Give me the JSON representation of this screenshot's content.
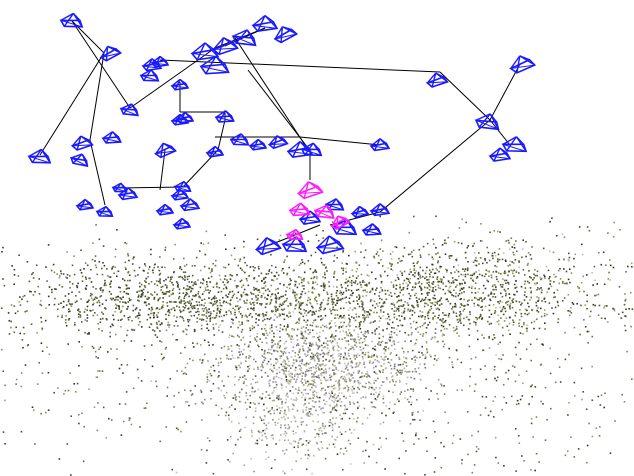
{
  "scene": {
    "background": "#ffffff",
    "camera_color": "#1a1aff",
    "highlight_camera_color": "#ff1aff",
    "trajectory_color": "#000000",
    "cluster_seed": 20240531,
    "points": {
      "palette": [
        "#3d4a2a",
        "#55602f",
        "#6b7540",
        "#8a8f58",
        "#9fa070",
        "#4a5236",
        "#a8a498",
        "#c8c4c0",
        "#7d7e6a",
        "#2f3524",
        "#b5b39a",
        "#8c8a7e",
        "#5f6a44",
        "#c2bfa6",
        "#9a98a8",
        "#6e6c80"
      ]
    }
  }
}
